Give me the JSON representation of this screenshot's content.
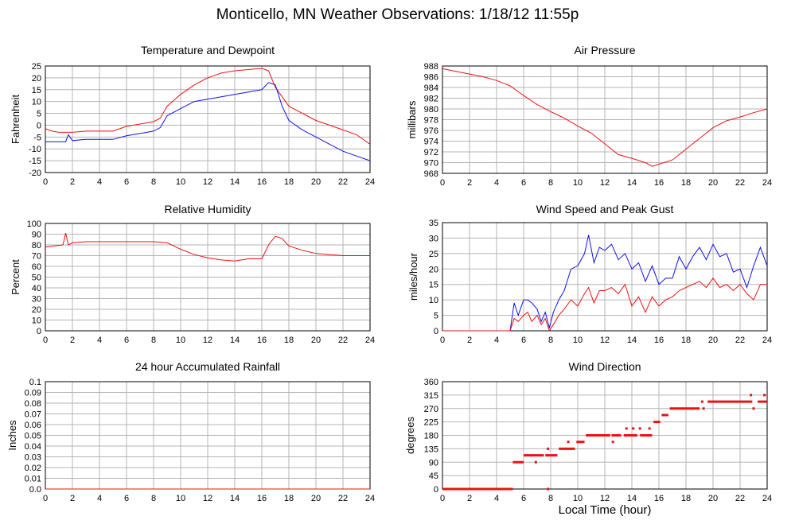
{
  "page": {
    "title": "Monticello, MN Weather Observations: 1/18/12 11:55p",
    "bottom_xlabel": "Local Time (hour)"
  },
  "colors": {
    "red": "#ee1111",
    "blue": "#1111ee",
    "grid": "#b4b4b4",
    "frame": "#000000"
  },
  "chart_data": [
    {
      "id": "temp",
      "type": "line",
      "title": "Temperature and Dewpoint",
      "xlabel": "",
      "ylabel": "Fahrenheit",
      "xlim": [
        0,
        24
      ],
      "ylim": [
        -20,
        25
      ],
      "xticks": [
        0,
        2,
        4,
        6,
        8,
        10,
        12,
        14,
        16,
        18,
        20,
        22,
        24
      ],
      "yticks": [
        -20,
        -15,
        -10,
        -5,
        0,
        5,
        10,
        15,
        20,
        25
      ],
      "grid": true,
      "series": [
        {
          "color": "red",
          "x": [
            0,
            0.5,
            1,
            2,
            3,
            4,
            5,
            6,
            7,
            8,
            8.5,
            9,
            10,
            11,
            12,
            13,
            14,
            15,
            16,
            16.5,
            17,
            17.5,
            18,
            19,
            20,
            21,
            22,
            23,
            24
          ],
          "y": [
            -1.5,
            -2.5,
            -3,
            -3,
            -2.5,
            -2.5,
            -2.5,
            -0.5,
            0.5,
            1.5,
            3,
            8,
            13,
            17,
            20,
            22,
            23,
            23.5,
            24,
            23,
            16,
            12,
            8,
            5,
            2,
            0,
            -2,
            -4,
            -8
          ]
        },
        {
          "color": "blue",
          "x": [
            0,
            1,
            1.5,
            1.7,
            2,
            3,
            4,
            5,
            6,
            7,
            8,
            8.5,
            9,
            10,
            11,
            12,
            13,
            14,
            15,
            16,
            16.5,
            17,
            17.5,
            18,
            19,
            20,
            21,
            22,
            23,
            24
          ],
          "y": [
            -7,
            -7,
            -7,
            -4,
            -6.5,
            -6,
            -6,
            -6,
            -4.5,
            -3.5,
            -2.5,
            -1,
            4,
            7,
            10,
            11,
            12,
            13,
            14,
            15,
            18,
            17,
            8,
            2,
            -2,
            -5,
            -8,
            -11,
            -13,
            -15
          ]
        }
      ]
    },
    {
      "id": "pressure",
      "type": "line",
      "title": "Air Pressure",
      "xlabel": "",
      "ylabel": "millibars",
      "xlim": [
        0,
        24
      ],
      "ylim": [
        968,
        988
      ],
      "xticks": [
        0,
        2,
        4,
        6,
        8,
        10,
        12,
        14,
        16,
        18,
        20,
        22,
        24
      ],
      "yticks": [
        968,
        970,
        972,
        974,
        976,
        978,
        980,
        982,
        984,
        986,
        988
      ],
      "grid": true,
      "series": [
        {
          "color": "red",
          "x": [
            0,
            1,
            2,
            3,
            4,
            5,
            6,
            7,
            8,
            9,
            10,
            11,
            12,
            13,
            14,
            15,
            15.5,
            16,
            17,
            18,
            19,
            20,
            21,
            22,
            23,
            24
          ],
          "y": [
            987.5,
            987,
            986.5,
            986,
            985.3,
            984.3,
            982.5,
            980.8,
            979.5,
            978.3,
            976.8,
            975.5,
            973.5,
            971.5,
            970.8,
            970,
            969.3,
            969.7,
            970.5,
            972.5,
            974.5,
            976.5,
            977.8,
            978.5,
            979.3,
            980
          ]
        }
      ]
    },
    {
      "id": "humidity",
      "type": "line",
      "title": "Relative Humidity",
      "xlabel": "",
      "ylabel": "Percent",
      "xlim": [
        0,
        24
      ],
      "ylim": [
        0,
        100
      ],
      "xticks": [
        0,
        2,
        4,
        6,
        8,
        10,
        12,
        14,
        16,
        18,
        20,
        22,
        24
      ],
      "yticks": [
        0,
        10,
        20,
        30,
        40,
        50,
        60,
        70,
        80,
        90,
        100
      ],
      "grid": true,
      "series": [
        {
          "color": "red",
          "x": [
            0,
            0.7,
            1.3,
            1.5,
            1.7,
            2,
            3,
            4,
            5,
            6,
            7,
            8,
            9,
            10,
            11,
            12,
            13,
            14,
            15,
            16,
            16.5,
            17,
            17.5,
            18,
            19,
            20,
            21,
            22,
            23,
            24
          ],
          "y": [
            78,
            79,
            80,
            91,
            80,
            82,
            83,
            83,
            83,
            83,
            83,
            83,
            82,
            76,
            71,
            68,
            66,
            65,
            67,
            67,
            80,
            88,
            86,
            79,
            75,
            72,
            71,
            70,
            70,
            70
          ]
        }
      ]
    },
    {
      "id": "wind",
      "type": "line",
      "title": "Wind Speed and Peak Gust",
      "xlabel": "",
      "ylabel": "miles/hour",
      "xlim": [
        0,
        24
      ],
      "ylim": [
        0,
        35
      ],
      "xticks": [
        0,
        2,
        4,
        6,
        8,
        10,
        12,
        14,
        16,
        18,
        20,
        22,
        24
      ],
      "yticks": [
        0,
        5,
        10,
        15,
        20,
        25,
        30,
        35
      ],
      "grid": true,
      "series": [
        {
          "color": "blue",
          "x": [
            0,
            5,
            5.3,
            5.6,
            6,
            6.3,
            6.6,
            7,
            7.3,
            7.6,
            7.9,
            8.2,
            8.6,
            9,
            9.5,
            10,
            10.5,
            10.8,
            11.2,
            11.6,
            12,
            12.5,
            13,
            13.5,
            14,
            14.5,
            15,
            15.5,
            16,
            16.5,
            17,
            17.5,
            18,
            18.5,
            19,
            19.5,
            20,
            20.5,
            21,
            21.5,
            22,
            22.5,
            23,
            23.5,
            24
          ],
          "y": [
            0,
            0,
            9,
            5,
            10,
            10,
            9,
            7,
            3,
            6,
            1,
            6,
            10,
            13,
            20,
            21,
            25,
            31,
            22,
            27,
            26,
            28,
            23,
            25,
            20,
            22,
            16,
            21,
            15,
            17,
            17,
            24,
            20,
            24,
            27,
            23,
            28,
            24,
            25,
            19,
            20,
            14,
            21,
            27,
            21
          ]
        },
        {
          "color": "red",
          "x": [
            0,
            5,
            5.3,
            5.6,
            6,
            6.3,
            6.6,
            7,
            7.3,
            7.6,
            7.9,
            8.2,
            8.6,
            9,
            9.5,
            10,
            10.5,
            10.8,
            11.2,
            11.6,
            12,
            12.5,
            13,
            13.5,
            14,
            14.5,
            15,
            15.5,
            16,
            16.5,
            17,
            17.5,
            18,
            18.5,
            19,
            19.5,
            20,
            20.5,
            21,
            21.5,
            22,
            22.5,
            23,
            23.5,
            24
          ],
          "y": [
            0,
            0,
            4,
            3,
            5,
            6,
            3,
            5,
            2,
            4,
            0,
            2,
            5,
            7,
            10,
            8,
            12,
            14,
            9,
            13,
            13,
            14,
            12,
            15,
            8,
            11,
            6,
            11,
            8,
            10,
            11,
            13,
            14,
            15,
            16,
            14,
            17,
            14,
            15,
            13,
            15,
            12,
            10,
            15,
            15
          ]
        }
      ]
    },
    {
      "id": "rain",
      "type": "line",
      "title": "24 hour Accumulated Rainfall",
      "xlabel": "",
      "ylabel": "Inches",
      "xlim": [
        0,
        24
      ],
      "ylim": [
        0,
        0.1
      ],
      "xticks": [
        0,
        2,
        4,
        6,
        8,
        10,
        12,
        14,
        16,
        18,
        20,
        22,
        24
      ],
      "yticks": [
        0.0,
        0.01,
        0.02,
        0.03,
        0.04,
        0.05,
        0.06,
        0.07,
        0.08,
        0.09,
        0.1
      ],
      "ytick_labels": [
        "0.0",
        "0.01",
        "0.02",
        "0.03",
        "0.04",
        "0.05",
        "0.06",
        "0.07",
        "0.08",
        "0.09",
        "0.1"
      ],
      "grid": true,
      "series": [
        {
          "color": "red",
          "x": [
            0,
            24
          ],
          "y": [
            0,
            0
          ]
        }
      ]
    },
    {
      "id": "direction",
      "type": "scatter",
      "title": "Wind Direction",
      "xlabel": "Local Time (hour)",
      "ylabel": "degrees",
      "xlim": [
        0,
        24
      ],
      "ylim": [
        0,
        360
      ],
      "xticks": [
        0,
        2,
        4,
        6,
        8,
        10,
        12,
        14,
        16,
        18,
        20,
        22,
        24
      ],
      "yticks": [
        0,
        45,
        90,
        135,
        180,
        225,
        270,
        315,
        360
      ],
      "grid": true,
      "segments": [
        {
          "x": [
            0,
            5.2
          ],
          "y": 0
        },
        {
          "x": [
            5.2,
            6.0
          ],
          "y": 90
        },
        {
          "x": [
            6.0,
            7.5
          ],
          "y": 113
        },
        {
          "x": [
            7.6,
            8.5
          ],
          "y": 113
        },
        {
          "x": [
            8.6,
            9.8
          ],
          "y": 135
        },
        {
          "x": [
            9.9,
            10.5
          ],
          "y": 158
        },
        {
          "x": [
            10.6,
            12.4
          ],
          "y": 180
        },
        {
          "x": [
            12.5,
            13.2
          ],
          "y": 180
        },
        {
          "x": [
            13.4,
            14.4
          ],
          "y": 180
        },
        {
          "x": [
            14.6,
            15.5
          ],
          "y": 180
        },
        {
          "x": [
            15.6,
            16.1
          ],
          "y": 225
        },
        {
          "x": [
            16.2,
            16.7
          ],
          "y": 248
        },
        {
          "x": [
            16.8,
            19.0
          ],
          "y": 270
        },
        {
          "x": [
            19.6,
            22.9
          ],
          "y": 293
        },
        {
          "x": [
            23.3,
            24
          ],
          "y": 293
        }
      ],
      "points": [
        {
          "x": 1.5,
          "y": 0
        },
        {
          "x": 6.9,
          "y": 90
        },
        {
          "x": 7.8,
          "y": 0
        },
        {
          "x": 7.8,
          "y": 135
        },
        {
          "x": 9.3,
          "y": 158
        },
        {
          "x": 11.2,
          "y": 180
        },
        {
          "x": 12.6,
          "y": 158
        },
        {
          "x": 13.6,
          "y": 203
        },
        {
          "x": 14.1,
          "y": 203
        },
        {
          "x": 14.6,
          "y": 203
        },
        {
          "x": 15.3,
          "y": 203
        },
        {
          "x": 19.2,
          "y": 293
        },
        {
          "x": 19.3,
          "y": 270
        },
        {
          "x": 22.8,
          "y": 315
        },
        {
          "x": 23.0,
          "y": 270
        },
        {
          "x": 23.8,
          "y": 315
        }
      ]
    }
  ]
}
